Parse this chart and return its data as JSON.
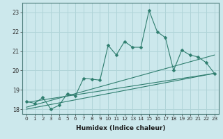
{
  "xlabel": "Humidex (Indice chaleur)",
  "background_color": "#cce8ec",
  "grid_color": "#b0d4d8",
  "line_color": "#2e7d6e",
  "x_values": [
    0,
    1,
    2,
    3,
    4,
    5,
    6,
    7,
    8,
    9,
    10,
    11,
    12,
    13,
    14,
    15,
    16,
    17,
    18,
    19,
    20,
    21,
    22,
    23
  ],
  "line1": [
    18.4,
    18.3,
    18.6,
    18.0,
    18.2,
    18.8,
    18.7,
    19.6,
    19.55,
    19.5,
    21.3,
    20.8,
    21.5,
    21.2,
    21.2,
    23.1,
    22.0,
    21.7,
    20.0,
    21.05,
    20.8,
    20.7,
    20.4,
    19.85
  ],
  "line2_x": [
    0,
    23
  ],
  "line2_y": [
    18.1,
    20.8
  ],
  "line3_x": [
    0,
    23
  ],
  "line3_y": [
    18.35,
    19.85
  ],
  "line4_x": [
    0,
    23
  ],
  "line4_y": [
    18.0,
    19.85
  ],
  "ylim": [
    17.75,
    23.5
  ],
  "xlim": [
    -0.5,
    23.5
  ],
  "yticks": [
    18,
    19,
    20,
    21,
    22,
    23
  ],
  "xticks": [
    0,
    1,
    2,
    3,
    4,
    5,
    6,
    7,
    8,
    9,
    10,
    11,
    12,
    13,
    14,
    15,
    16,
    17,
    18,
    19,
    20,
    21,
    22,
    23
  ],
  "xtick_fontsize": 5.2,
  "ytick_fontsize": 5.8,
  "xlabel_fontsize": 6.5
}
